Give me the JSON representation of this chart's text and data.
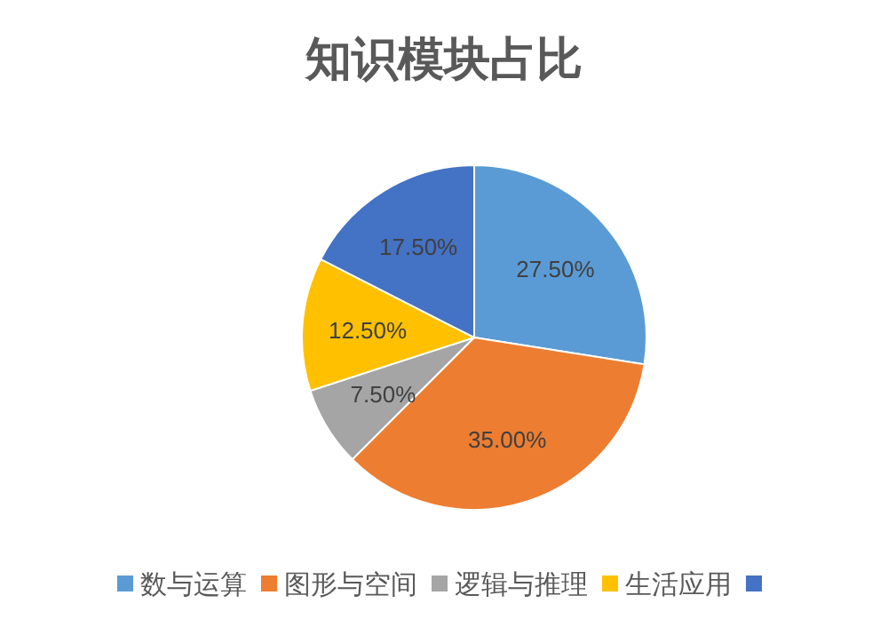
{
  "chart_data": {
    "type": "pie",
    "title": "知识模块占比",
    "categories": [
      "数与运算",
      "图形与空间",
      "逻辑与推理",
      "生活应用",
      null
    ],
    "values": [
      27.5,
      35,
      7.5,
      12.5,
      17.5
    ],
    "value_labels": [
      "27.50%",
      "35.00%",
      "7.50%",
      "12.50%",
      "17.50%"
    ],
    "colors": [
      "#5b9bd5",
      "#ed7d31",
      "#a5a5a5",
      "#ffc000",
      "#4472c4"
    ],
    "legend": "bottom"
  }
}
